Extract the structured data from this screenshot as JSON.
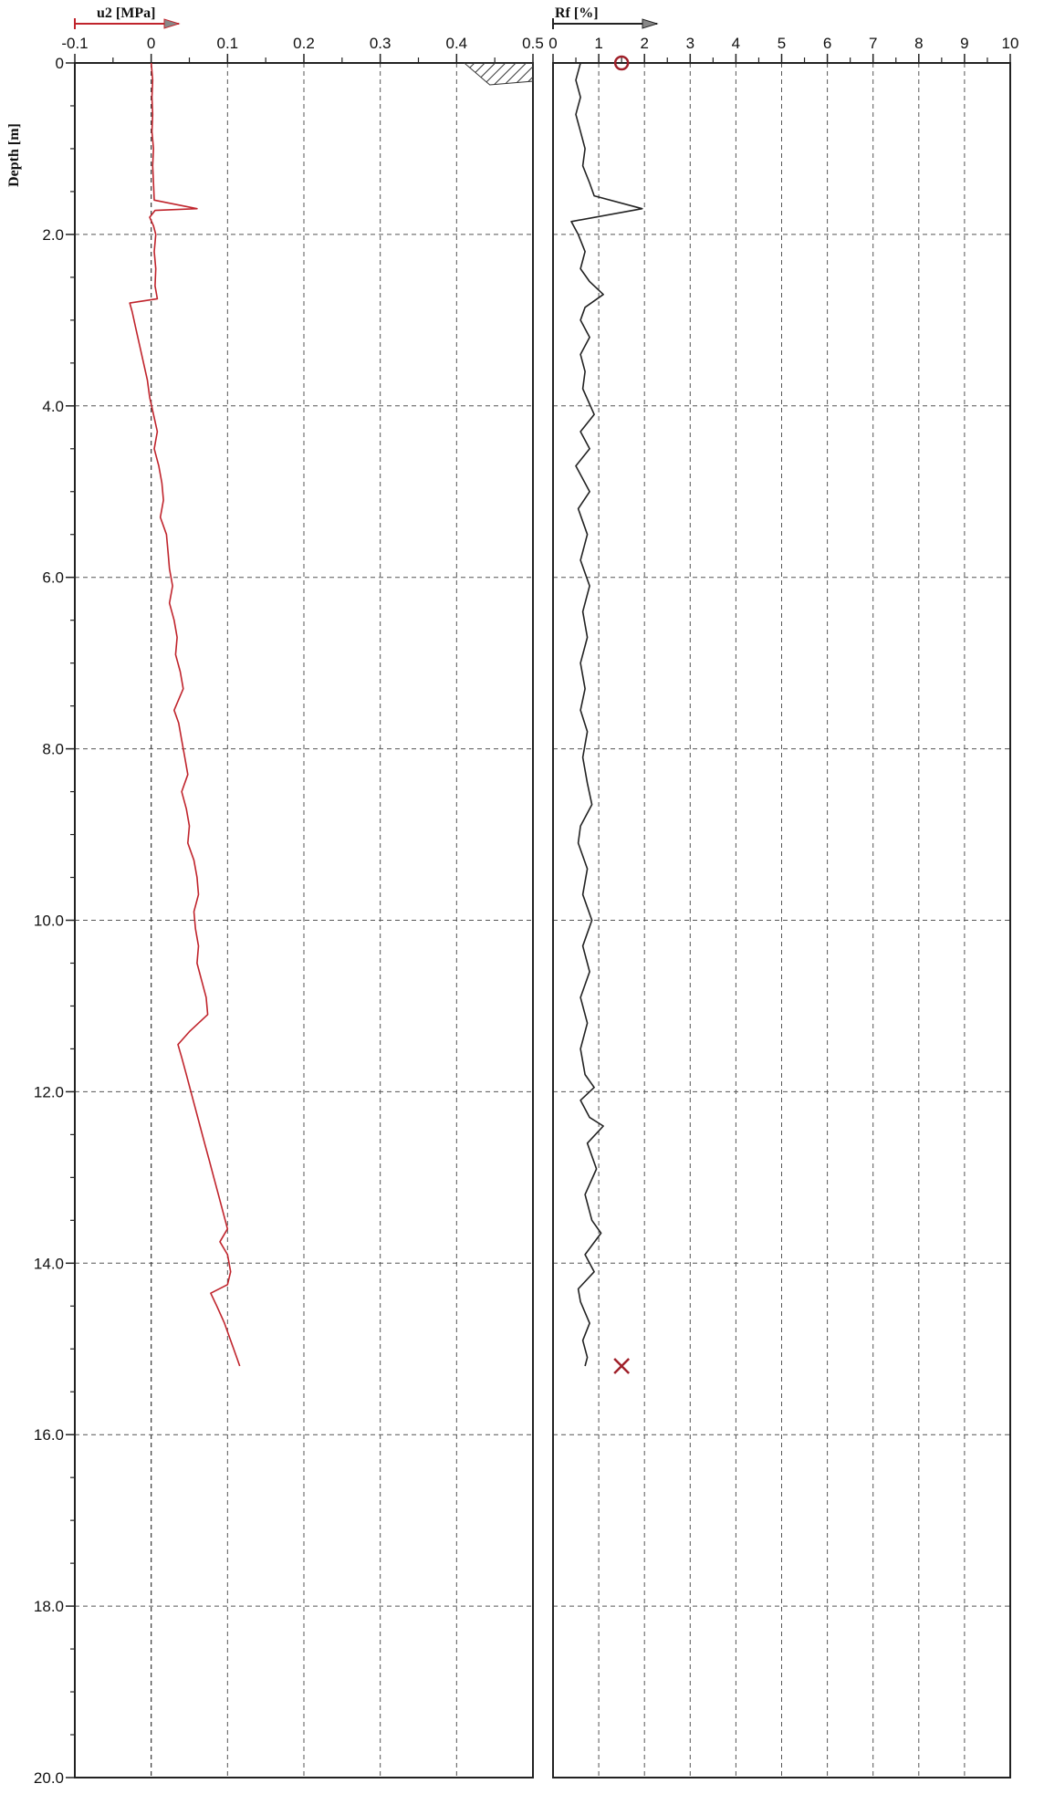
{
  "chart_data": [
    {
      "type": "line",
      "title": "",
      "xlabel": "u2 [MPa]",
      "ylabel": "Depth [m]",
      "xlim": [
        -0.1,
        0.5
      ],
      "ylim": [
        0,
        20
      ],
      "y_inverted": true,
      "grid": true,
      "x_ticks": [
        "-0.1",
        "0",
        "0.1",
        "0.2",
        "0.3",
        "0.4",
        "0.5"
      ],
      "y_ticks": [
        "0",
        "2.0",
        "4.0",
        "6.0",
        "8.0",
        "10.0",
        "12.0",
        "14.0",
        "16.0",
        "18.0",
        "20.0"
      ],
      "series": [
        {
          "color": "#c0242c",
          "points": [
            [
              0.0,
              0.0
            ],
            [
              0.002,
              0.2
            ],
            [
              0.001,
              0.4
            ],
            [
              0.002,
              0.6
            ],
            [
              0.001,
              0.8
            ],
            [
              0.003,
              1.0
            ],
            [
              0.002,
              1.2
            ],
            [
              0.003,
              1.4
            ],
            [
              0.004,
              1.6
            ],
            [
              0.06,
              1.7
            ],
            [
              0.005,
              1.72
            ],
            [
              -0.002,
              1.8
            ],
            [
              0.003,
              1.9
            ],
            [
              0.006,
              2.0
            ],
            [
              0.004,
              2.2
            ],
            [
              0.006,
              2.4
            ],
            [
              0.005,
              2.6
            ],
            [
              0.008,
              2.75
            ],
            [
              -0.028,
              2.8
            ],
            [
              -0.025,
              2.9
            ],
            [
              -0.02,
              3.1
            ],
            [
              -0.015,
              3.3
            ],
            [
              -0.01,
              3.5
            ],
            [
              -0.005,
              3.7
            ],
            [
              -0.002,
              3.9
            ],
            [
              0.003,
              4.1
            ],
            [
              0.008,
              4.3
            ],
            [
              0.004,
              4.5
            ],
            [
              0.01,
              4.7
            ],
            [
              0.014,
              4.9
            ],
            [
              0.016,
              5.1
            ],
            [
              0.012,
              5.3
            ],
            [
              0.02,
              5.5
            ],
            [
              0.022,
              5.7
            ],
            [
              0.024,
              5.9
            ],
            [
              0.028,
              6.1
            ],
            [
              0.024,
              6.3
            ],
            [
              0.03,
              6.5
            ],
            [
              0.034,
              6.7
            ],
            [
              0.032,
              6.9
            ],
            [
              0.038,
              7.1
            ],
            [
              0.042,
              7.3
            ],
            [
              0.03,
              7.55
            ],
            [
              0.036,
              7.7
            ],
            [
              0.04,
              7.9
            ],
            [
              0.044,
              8.1
            ],
            [
              0.048,
              8.3
            ],
            [
              0.04,
              8.5
            ],
            [
              0.046,
              8.7
            ],
            [
              0.05,
              8.9
            ],
            [
              0.048,
              9.1
            ],
            [
              0.056,
              9.3
            ],
            [
              0.06,
              9.5
            ],
            [
              0.062,
              9.7
            ],
            [
              0.056,
              9.9
            ],
            [
              0.058,
              10.1
            ],
            [
              0.062,
              10.3
            ],
            [
              0.06,
              10.5
            ],
            [
              0.066,
              10.7
            ],
            [
              0.072,
              10.9
            ],
            [
              0.074,
              11.1
            ],
            [
              0.05,
              11.3
            ],
            [
              0.035,
              11.45
            ],
            [
              0.04,
              11.6
            ],
            [
              0.046,
              11.8
            ],
            [
              0.052,
              12.0
            ],
            [
              0.058,
              12.2
            ],
            [
              0.064,
              12.4
            ],
            [
              0.07,
              12.6
            ],
            [
              0.076,
              12.8
            ],
            [
              0.082,
              13.0
            ],
            [
              0.088,
              13.2
            ],
            [
              0.094,
              13.4
            ],
            [
              0.1,
              13.6
            ],
            [
              0.09,
              13.75
            ],
            [
              0.1,
              13.9
            ],
            [
              0.104,
              14.1
            ],
            [
              0.1,
              14.25
            ],
            [
              0.078,
              14.35
            ],
            [
              0.086,
              14.5
            ],
            [
              0.096,
              14.7
            ],
            [
              0.104,
              14.9
            ],
            [
              0.112,
              15.1
            ],
            [
              0.116,
              15.2
            ]
          ]
        }
      ]
    },
    {
      "type": "line",
      "title": "",
      "xlabel": "Rf [%]",
      "ylabel": "",
      "xlim": [
        0,
        10
      ],
      "ylim": [
        0,
        20
      ],
      "y_inverted": true,
      "grid": true,
      "x_ticks": [
        "0",
        "1",
        "2",
        "3",
        "4",
        "5",
        "6",
        "7",
        "8",
        "9",
        "10"
      ],
      "series": [
        {
          "color": "#222222",
          "points": [
            [
              0.6,
              0.0
            ],
            [
              0.5,
              0.2
            ],
            [
              0.6,
              0.4
            ],
            [
              0.5,
              0.6
            ],
            [
              0.6,
              0.8
            ],
            [
              0.7,
              1.0
            ],
            [
              0.65,
              1.2
            ],
            [
              0.8,
              1.4
            ],
            [
              0.9,
              1.55
            ],
            [
              1.95,
              1.7
            ],
            [
              0.4,
              1.85
            ],
            [
              0.55,
              2.0
            ],
            [
              0.7,
              2.2
            ],
            [
              0.6,
              2.4
            ],
            [
              0.8,
              2.55
            ],
            [
              1.1,
              2.7
            ],
            [
              0.7,
              2.85
            ],
            [
              0.6,
              3.0
            ],
            [
              0.8,
              3.2
            ],
            [
              0.6,
              3.4
            ],
            [
              0.7,
              3.6
            ],
            [
              0.65,
              3.8
            ],
            [
              0.9,
              4.1
            ],
            [
              0.6,
              4.3
            ],
            [
              0.8,
              4.5
            ],
            [
              0.5,
              4.7
            ],
            [
              0.8,
              5.0
            ],
            [
              0.55,
              5.2
            ],
            [
              0.75,
              5.5
            ],
            [
              0.6,
              5.8
            ],
            [
              0.8,
              6.1
            ],
            [
              0.65,
              6.4
            ],
            [
              0.75,
              6.7
            ],
            [
              0.6,
              7.0
            ],
            [
              0.7,
              7.3
            ],
            [
              0.6,
              7.55
            ],
            [
              0.75,
              7.8
            ],
            [
              0.65,
              8.1
            ],
            [
              0.75,
              8.4
            ],
            [
              0.85,
              8.65
            ],
            [
              0.6,
              8.9
            ],
            [
              0.55,
              9.1
            ],
            [
              0.75,
              9.4
            ],
            [
              0.65,
              9.7
            ],
            [
              0.85,
              10.0
            ],
            [
              0.65,
              10.3
            ],
            [
              0.8,
              10.6
            ],
            [
              0.6,
              10.9
            ],
            [
              0.75,
              11.2
            ],
            [
              0.6,
              11.5
            ],
            [
              0.7,
              11.8
            ],
            [
              0.9,
              11.95
            ],
            [
              0.6,
              12.1
            ],
            [
              0.8,
              12.3
            ],
            [
              1.1,
              12.4
            ],
            [
              0.75,
              12.6
            ],
            [
              0.95,
              12.9
            ],
            [
              0.7,
              13.2
            ],
            [
              0.85,
              13.5
            ],
            [
              1.05,
              13.65
            ],
            [
              0.7,
              13.9
            ],
            [
              0.9,
              14.1
            ],
            [
              0.55,
              14.3
            ],
            [
              0.6,
              14.45
            ],
            [
              0.8,
              14.7
            ],
            [
              0.65,
              14.9
            ],
            [
              0.75,
              15.1
            ],
            [
              0.7,
              15.2
            ]
          ]
        }
      ],
      "markers": [
        {
          "symbol": "circle",
          "color": "#a0202a",
          "x": 1.5,
          "y": 0.0
        },
        {
          "symbol": "cross",
          "color": "#a0202a",
          "x": 1.5,
          "y": 15.2
        }
      ]
    }
  ]
}
